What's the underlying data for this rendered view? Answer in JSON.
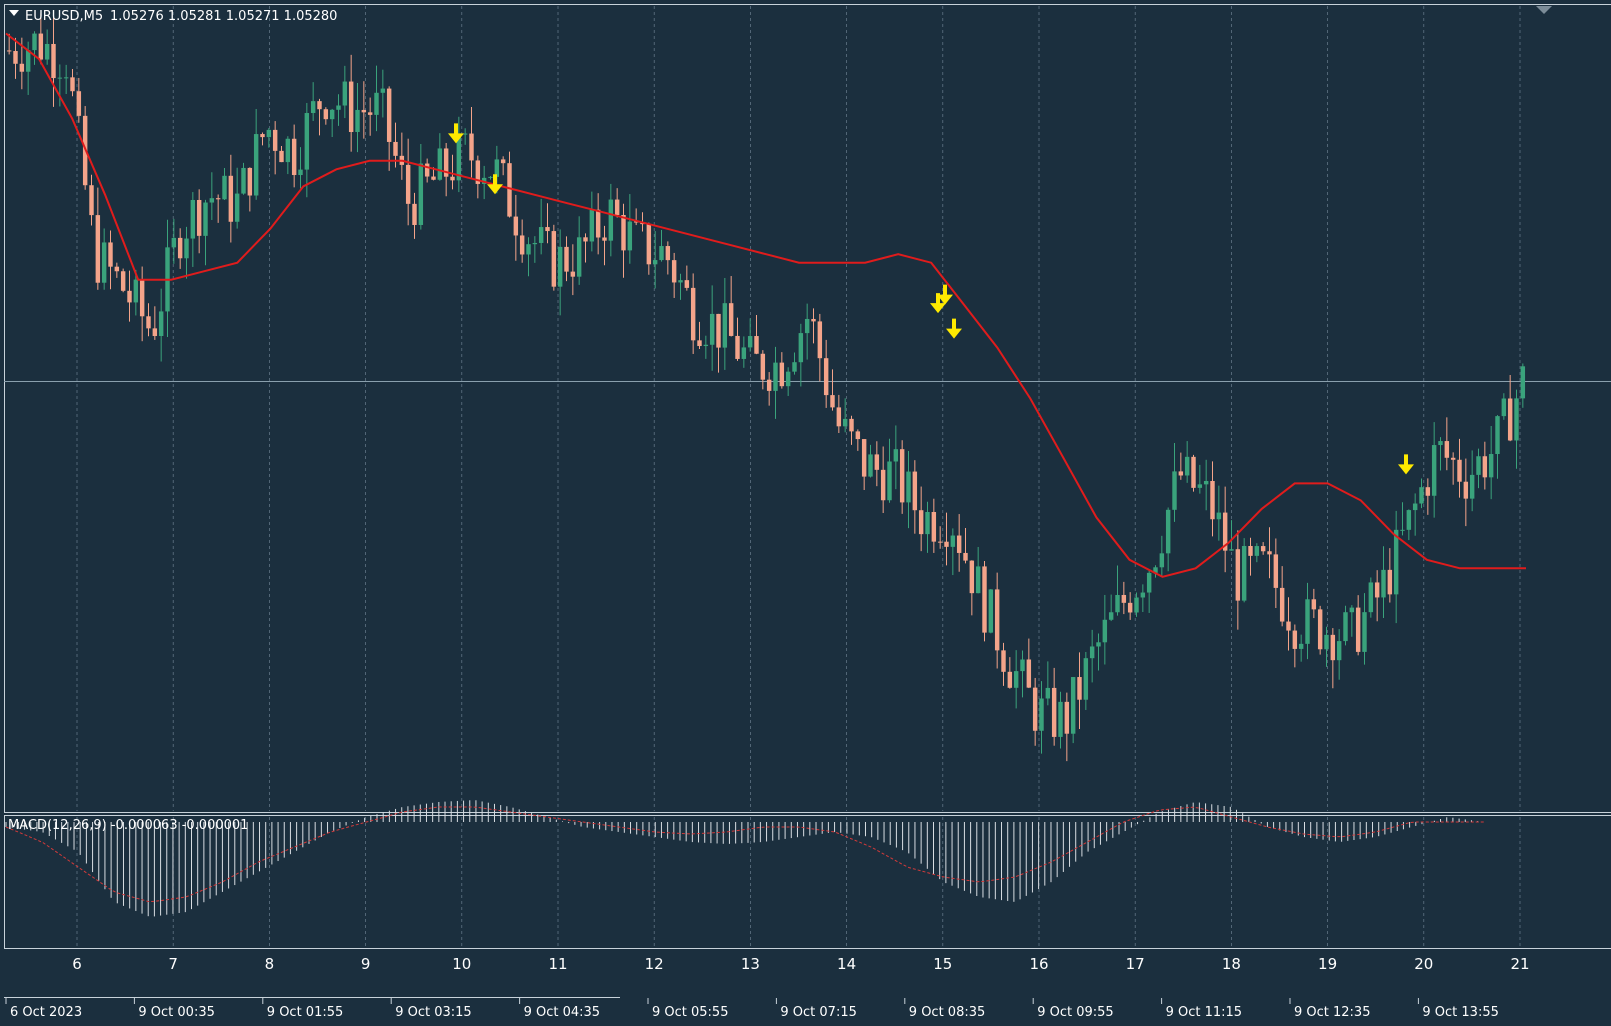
{
  "header": {
    "symbol": "EURUSD,M5",
    "quote": "1.05276 1.05281 1.05271 1.05280"
  },
  "indicator": {
    "label": "MACD(12,26,9) -0.000063 -0.000001"
  },
  "colors": {
    "background": "#1b2f3e",
    "bull": "#3aa37c",
    "bear": "#f4a48a",
    "ma": "#e01c1c",
    "arrow": "#ffea00",
    "grid": "#9fb3c4",
    "price_line": "#8aa0ad",
    "macd_hist": "#d8dde2",
    "macd_signal": "#d23a3a"
  },
  "chart_data": {
    "type": "candlestick",
    "timeframe": "M5",
    "ylim": [
      1.0478,
      1.0572
    ],
    "price_line": 1.0528,
    "day_axis": [
      "6",
      "7",
      "8",
      "9",
      "10",
      "11",
      "12",
      "13",
      "14",
      "15",
      "16",
      "17",
      "18",
      "19",
      "20",
      "21"
    ],
    "time_axis": [
      "6 Oct 2023",
      "9 Oct 00:35",
      "9 Oct 01:55",
      "9 Oct 03:15",
      "9 Oct 04:35",
      "9 Oct 05:55",
      "9 Oct 07:15",
      "9 Oct 08:35",
      "9 Oct 09:55",
      "9 Oct 11:15",
      "9 Oct 12:35",
      "9 Oct 13:55"
    ],
    "close_path": [
      1.0567,
      1.0568,
      1.0566,
      1.0543,
      1.0539,
      1.0534,
      1.0546,
      1.055,
      1.0549,
      1.0558,
      1.0555,
      1.0562,
      1.056,
      1.056,
      1.0549,
      1.0552,
      1.0555,
      1.0553,
      1.0546,
      1.0542,
      1.0543,
      1.0548,
      1.0544,
      1.0543,
      1.0536,
      1.0534,
      1.053,
      1.053,
      1.0536,
      1.0523,
      1.0518,
      1.0517,
      1.0512,
      1.0512,
      1.0503,
      1.0495,
      1.0489,
      1.0488,
      1.0496,
      1.0502,
      1.0507,
      1.0517,
      1.0514,
      1.0505,
      1.0506,
      1.05,
      1.0499,
      1.0498,
      1.0503,
      1.0511,
      1.052,
      1.0517,
      1.052,
      1.0528
    ],
    "moving_average": [
      1.0569,
      1.0566,
      1.0559,
      1.055,
      1.054,
      1.054,
      1.0541,
      1.0542,
      1.0546,
      1.0551,
      1.0553,
      1.0554,
      1.0554,
      1.0553,
      1.0552,
      1.0551,
      1.055,
      1.0549,
      1.0548,
      1.0547,
      1.0546,
      1.0545,
      1.0544,
      1.0543,
      1.0542,
      1.0542,
      1.0542,
      1.0543,
      1.0542,
      1.0537,
      1.0532,
      1.0526,
      1.0519,
      1.0512,
      1.0507,
      1.0505,
      1.0506,
      1.0509,
      1.0513,
      1.0516,
      1.0516,
      1.0514,
      1.051,
      1.0507,
      1.0506,
      1.0506,
      1.0506
    ],
    "sell_arrows": [
      1.0557,
      1.0551,
      1.0537,
      1.0538,
      1.0534,
      1.0518
    ],
    "macd": {
      "histogram_profile": [
        0.05,
        0.1,
        0.3,
        0.8,
        0.95,
        0.9,
        0.7,
        0.5,
        0.3,
        0.1,
        -0.05,
        -0.15,
        -0.2,
        -0.22,
        -0.15,
        -0.05,
        0.05,
        0.1,
        0.15,
        0.2,
        0.22,
        0.2,
        0.15,
        0.1,
        0.15,
        0.3,
        0.6,
        0.75,
        0.8,
        0.6,
        0.3,
        0.1,
        -0.1,
        -0.2,
        -0.15,
        0.05,
        0.15,
        0.2,
        0.15,
        0.05,
        -0.05,
        0.0
      ],
      "signal_profile": [
        0.05,
        0.2,
        0.45,
        0.7,
        0.8,
        0.75,
        0.6,
        0.4,
        0.25,
        0.1,
        0.0,
        -0.1,
        -0.15,
        -0.15,
        -0.1,
        -0.05,
        0.0,
        0.05,
        0.1,
        0.12,
        0.1,
        0.05,
        0.05,
        0.1,
        0.25,
        0.45,
        0.55,
        0.6,
        0.55,
        0.4,
        0.2,
        0.0,
        -0.12,
        -0.15,
        -0.05,
        0.05,
        0.12,
        0.15,
        0.1,
        0.0,
        0.0,
        0.0
      ]
    }
  }
}
